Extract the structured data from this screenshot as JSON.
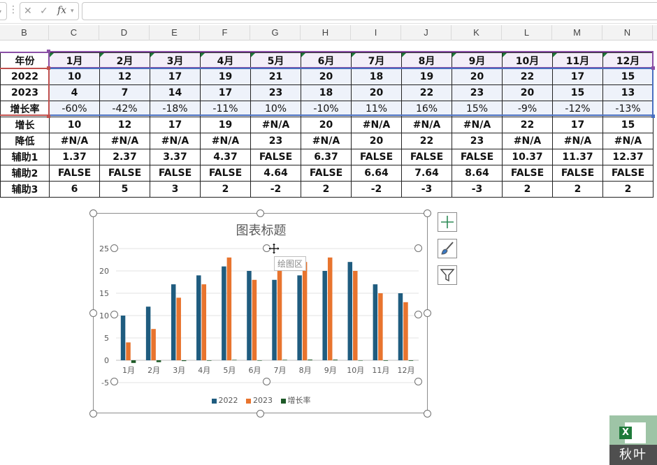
{
  "formula_bar": {
    "fx_label": "fx",
    "cancel_glyph": "✕",
    "enter_glyph": "✓",
    "menu_glyph": "⋮",
    "formula_value": ""
  },
  "columns": [
    "B",
    "C",
    "D",
    "E",
    "F",
    "G",
    "H",
    "I",
    "J",
    "K",
    "L",
    "M",
    "N"
  ],
  "table": {
    "month_row": {
      "label": "年份",
      "cells": [
        "1月",
        "2月",
        "3月",
        "4月",
        "5月",
        "6月",
        "7月",
        "8月",
        "9月",
        "10月",
        "11月",
        "12月"
      ]
    },
    "y2022_row": {
      "label": "2022",
      "cells": [
        "10",
        "12",
        "17",
        "19",
        "21",
        "20",
        "18",
        "19",
        "20",
        "22",
        "17",
        "15"
      ]
    },
    "y2023_row": {
      "label": "2023",
      "cells": [
        "4",
        "7",
        "14",
        "17",
        "23",
        "18",
        "20",
        "22",
        "23",
        "20",
        "15",
        "13"
      ]
    },
    "rate_row": {
      "label": "增长率",
      "cells": [
        "-60%",
        "-42%",
        "-18%",
        "-11%",
        "10%",
        "-10%",
        "11%",
        "16%",
        "15%",
        "-9%",
        "-12%",
        "-13%"
      ]
    },
    "up_row": {
      "label": "增长",
      "cells": [
        "10",
        "12",
        "17",
        "19",
        "#N/A",
        "20",
        "#N/A",
        "#N/A",
        "#N/A",
        "22",
        "17",
        "15"
      ]
    },
    "down_row": {
      "label": "降低",
      "cells": [
        "#N/A",
        "#N/A",
        "#N/A",
        "#N/A",
        "23",
        "#N/A",
        "20",
        "22",
        "23",
        "#N/A",
        "#N/A",
        "#N/A"
      ]
    },
    "aux1_row": {
      "label": "辅助1",
      "cells": [
        "1.37",
        "2.37",
        "3.37",
        "4.37",
        "FALSE",
        "6.37",
        "FALSE",
        "FALSE",
        "FALSE",
        "10.37",
        "11.37",
        "12.37"
      ]
    },
    "aux2_row": {
      "label": "辅助2",
      "cells": [
        "FALSE",
        "FALSE",
        "FALSE",
        "FALSE",
        "4.64",
        "FALSE",
        "6.64",
        "7.64",
        "8.64",
        "FALSE",
        "FALSE",
        "FALSE"
      ]
    },
    "aux3_row": {
      "label": "辅助3",
      "cells": [
        "6",
        "5",
        "3",
        "2",
        "-2",
        "2",
        "-2",
        "-3",
        "-3",
        "2",
        "2",
        "2"
      ]
    }
  },
  "chart": {
    "title": "图表标题",
    "plot_area_tip": "绘图区",
    "legend": [
      "2022",
      "2023",
      "增长率"
    ],
    "colors": {
      "2022": "#1f5c7f",
      "2023": "#e8742e",
      "rate": "#1e5a28"
    }
  },
  "chart_data": {
    "type": "bar",
    "title": "图表标题",
    "categories": [
      "1月",
      "2月",
      "3月",
      "4月",
      "5月",
      "6月",
      "7月",
      "8月",
      "9月",
      "10月",
      "11月",
      "12月"
    ],
    "series": [
      {
        "name": "2022",
        "values": [
          10,
          12,
          17,
          19,
          21,
          20,
          18,
          19,
          20,
          22,
          17,
          15
        ]
      },
      {
        "name": "2023",
        "values": [
          4,
          7,
          14,
          17,
          23,
          18,
          20,
          22,
          23,
          20,
          15,
          13
        ]
      },
      {
        "name": "增长率",
        "values": [
          -0.6,
          -0.42,
          -0.18,
          -0.11,
          0.1,
          -0.1,
          0.11,
          0.16,
          0.15,
          -0.09,
          -0.12,
          -0.13
        ]
      }
    ],
    "ylim": [
      -5,
      25
    ],
    "yticks": [
      -5,
      0,
      5,
      10,
      15,
      20,
      25
    ],
    "xlabel": "",
    "ylabel": "",
    "grid": true,
    "legend_position": "bottom"
  },
  "logo": {
    "letter": "X",
    "text": "秋叶"
  }
}
